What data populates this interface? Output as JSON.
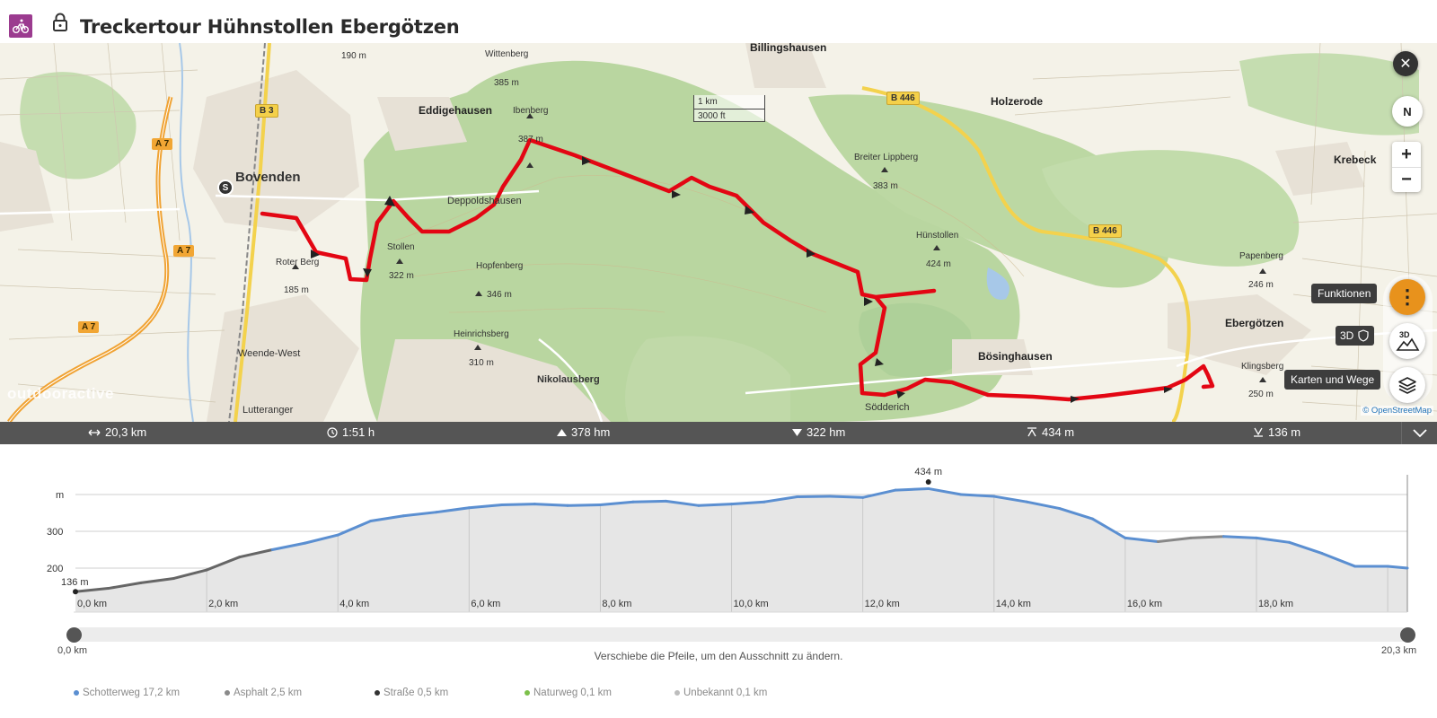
{
  "header": {
    "title": "Treckertour Hühnstollen Ebergötzen"
  },
  "map": {
    "labels": {
      "billingshausen": "Billingshausen",
      "wittenberg": "Wittenberg",
      "wittenberg_elev": "385 m",
      "eddigehausen": "Eddigehausen",
      "ibenberg": "Ibenberg",
      "ibenberg_elev": "387 m",
      "deppoldshausen": "Deppoldshausen",
      "stollen": "Stollen",
      "stollen_elev": "322 m",
      "hopfenberg": "Hopfenberg",
      "hopfenberg_elev": "346 m",
      "heinrichsberg": "Heinrichsberg",
      "heinrichsberg_elev": "310 m",
      "nikolausberg": "Nikolausberg",
      "bovenden": "Bovenden",
      "roter_berg": "Roter Berg",
      "roter_berg_elev": "185 m",
      "weende_west": "Weende-West",
      "lutteranger": "Lutteranger",
      "elev_190": "190 m",
      "holzerode": "Holzerode",
      "breiter_lippberg": "Breiter Lippberg",
      "breiter_lippberg_elev": "383 m",
      "huenstollen": "Hünstollen",
      "huenstollen_elev": "424 m",
      "boesinghausen": "Bösinghausen",
      "soeddrich": "Södderich",
      "krebeck": "Krebeck",
      "papenberg": "Papenberg",
      "papenberg_elev": "246 m",
      "ebergoetzen": "Ebergötzen",
      "klingsberg": "Klingsberg",
      "klingsberg_elev": "250 m"
    },
    "shields": {
      "b3": "B 3",
      "a7_1": "A 7",
      "a7_2": "A 7",
      "a7_3": "A 7",
      "b446_1": "B 446",
      "b446_2": "B 446"
    },
    "scale": {
      "metric": "1 km",
      "imperial": "3000 ft"
    },
    "start_marker": "S",
    "watermark": "outdooractive",
    "attribution": "© OpenStreetMap",
    "compass_label": "N",
    "zoom_in": "+",
    "zoom_out": "−",
    "close": "✕",
    "functions_tooltip": "Funktionen",
    "btn3d_label": "3D",
    "btn3d_tooltip": "3D",
    "layers_tooltip": "Karten und Wege",
    "colors": {
      "route": "#e30613",
      "forest": "#b7d59e",
      "accent": "#e8921c"
    }
  },
  "stats": {
    "distance": "20,3 km",
    "duration": "1:51 h",
    "ascent": "378 hm",
    "descent": "322 hm",
    "max_elev": "434 m",
    "min_elev": "136 m"
  },
  "profile": {
    "y_unit": "m",
    "y_ticks": [
      "300",
      "200"
    ],
    "x_ticks": [
      "0,0 km",
      "2,0 km",
      "4,0 km",
      "6,0 km",
      "8,0 km",
      "10,0 km",
      "12,0 km",
      "14,0 km",
      "16,0 km",
      "18,0 km"
    ],
    "start_label": "136 m",
    "peak_label": "434 m",
    "distance_km": [
      0,
      0.5,
      1,
      1.5,
      2,
      2.5,
      3,
      3.5,
      4,
      4.5,
      5,
      5.5,
      6,
      6.5,
      7,
      7.5,
      8,
      8.5,
      9,
      9.5,
      10,
      10.5,
      11,
      11.5,
      12,
      12.5,
      13,
      13.5,
      14,
      14.5,
      15,
      15.5,
      16,
      16.5,
      17,
      17.5,
      18,
      18.5,
      19,
      19.5,
      20,
      20.3
    ],
    "elevation_m": [
      136,
      145,
      160,
      172,
      195,
      230,
      250,
      268,
      290,
      328,
      342,
      352,
      364,
      372,
      374,
      370,
      372,
      380,
      382,
      370,
      374,
      380,
      394,
      395,
      392,
      412,
      416,
      400,
      395,
      380,
      362,
      334,
      282,
      272,
      282,
      286,
      282,
      270,
      240,
      205,
      205,
      200
    ]
  },
  "range": {
    "start_label": "0,0 km",
    "end_label": "20,3 km",
    "hint": "Verschiebe die Pfeile, um den Ausschnitt zu ändern."
  },
  "legend": [
    {
      "label": "Schotterweg 17,2 km",
      "color": "#5b8fd1"
    },
    {
      "label": "Asphalt 2,5 km",
      "color": "#8a8a8a"
    },
    {
      "label": "Straße 0,5 km",
      "color": "#333333"
    },
    {
      "label": "Naturweg 0,1 km",
      "color": "#7cc04b"
    },
    {
      "label": "Unbekannt 0,1 km",
      "color": "#bdbdbd"
    }
  ]
}
